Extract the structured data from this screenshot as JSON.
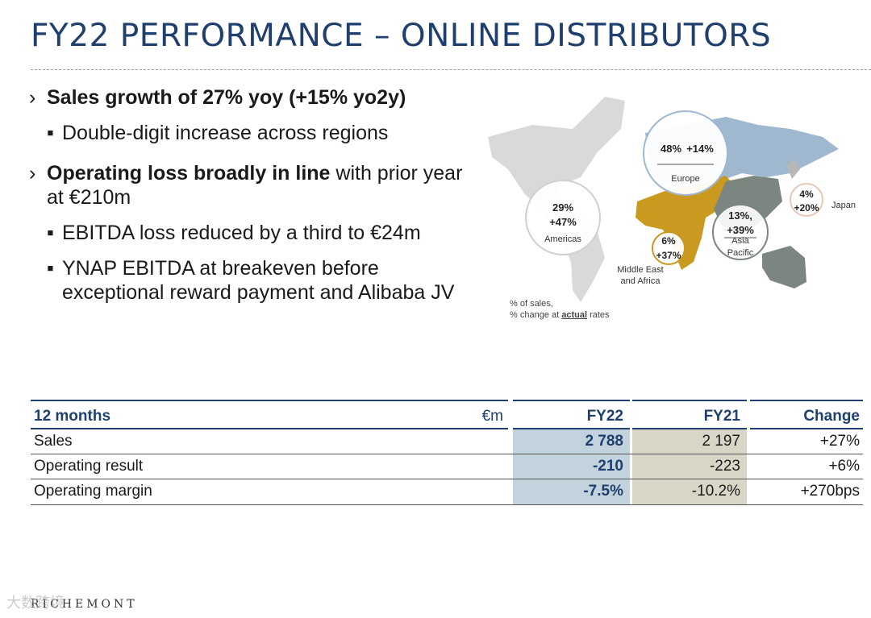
{
  "title": "FY22 PERFORMANCE – ONLINE DISTRIBUTORS",
  "bullets": {
    "b1": "Sales growth of 27% yoy (+15% yo2y)",
    "b1_sub": "Double-digit increase across regions",
    "b2_bold": "Operating loss broadly in line",
    "b2_rest": " with prior year at €210m",
    "b2_sub1": "EBITDA loss reduced by a third to €24m",
    "b2_sub2": "YNAP EBITDA at breakeven before exceptional reward payment and Alibaba JV"
  },
  "map": {
    "americas": {
      "pct": "29%",
      "chg": "+47%",
      "label": "Americas"
    },
    "europe": {
      "pct": "48%",
      "chg": "+14%",
      "label": "Europe"
    },
    "mea": {
      "pct": "6%",
      "chg": "+37%",
      "label1": "Middle East",
      "label2": "and Africa"
    },
    "apac": {
      "pct": "13%,",
      "chg": "+39%",
      "label1": "Asia",
      "label2": "Pacific"
    },
    "japan": {
      "pct": "4%",
      "chg": "+20%",
      "label": "Japan"
    },
    "note1": "% of sales,",
    "note2a": "% change at ",
    "note2b": "actual",
    "note2c": " rates"
  },
  "table": {
    "period": "12 months",
    "unit": "€m",
    "cols": [
      "FY22",
      "FY21",
      "Change"
    ],
    "rows": [
      {
        "label": "Sales",
        "fy22": "2 788",
        "fy21": "2 197",
        "change": "+27%"
      },
      {
        "label": "Operating result",
        "fy22": "-210",
        "fy21": "-223",
        "change": "+6%"
      },
      {
        "label": "Operating margin",
        "fy22": "-7.5%",
        "fy21": "-10.2%",
        "change": "+270bps"
      }
    ]
  },
  "logo": "RICHEMONT",
  "watermark": "大数跨境",
  "colors": {
    "brand": "#1f3f6e",
    "europe": "#9fb7cf",
    "mea": "#c99a1f",
    "apac": "#7c8680",
    "americas": "#d9d9d9"
  }
}
